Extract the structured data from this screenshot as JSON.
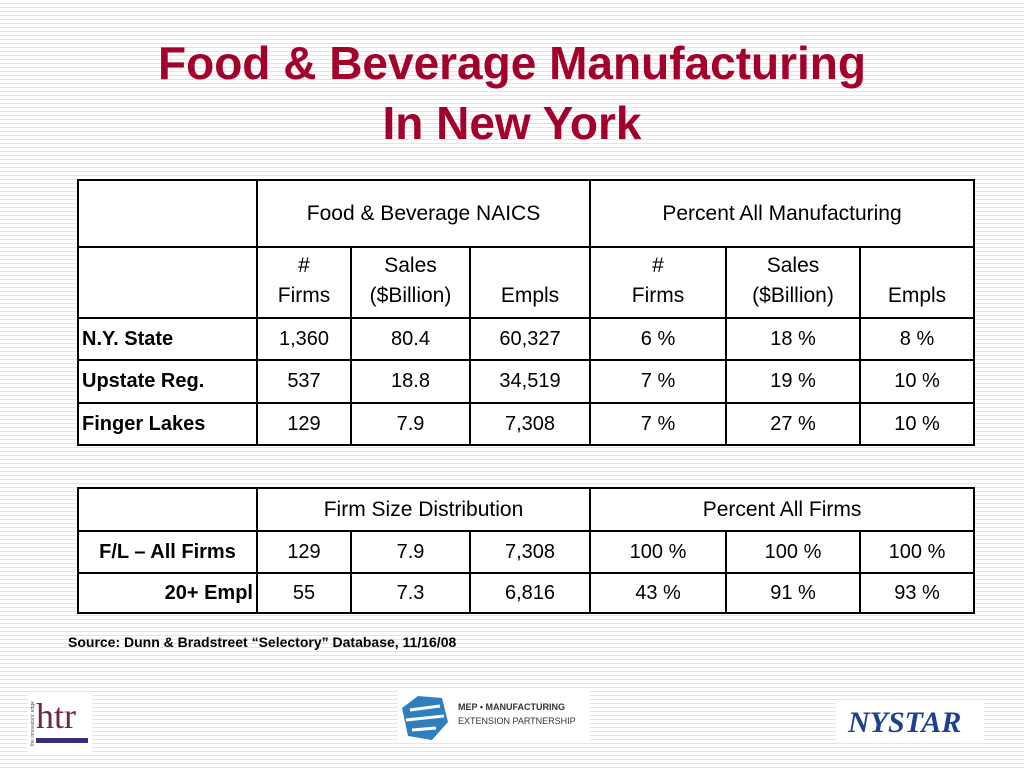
{
  "title": [
    "Food & Beverage Manufacturing",
    "In New York"
  ],
  "table1": {
    "group_headers": [
      "Food & Beverage NAICS",
      "Percent All Manufacturing"
    ],
    "col_headers": [
      [
        "#",
        "Firms"
      ],
      [
        "Sales",
        "($Billion)"
      ],
      [
        "Empls"
      ],
      [
        "#",
        "Firms"
      ],
      [
        "Sales",
        "($Billion)"
      ],
      [
        "Empls"
      ]
    ],
    "rows": [
      {
        "label": "N.Y. State",
        "cells": [
          "1,360",
          "80.4",
          "60,327",
          "6 %",
          "18 %",
          "8 %"
        ]
      },
      {
        "label": "Upstate Reg.",
        "cells": [
          "537",
          "18.8",
          "34,519",
          "7 %",
          "19 %",
          "10 %"
        ]
      },
      {
        "label": "Finger Lakes",
        "cells": [
          "129",
          "7.9",
          "7,308",
          "7 %",
          "27 %",
          "10 %"
        ]
      }
    ]
  },
  "table2": {
    "group_headers": [
      "Firm Size Distribution",
      "Percent All Firms"
    ],
    "rows": [
      {
        "label": "F/L – All Firms",
        "cells": [
          "129",
          "7.9",
          "7,308",
          "100 %",
          "100 %",
          "100 %"
        ]
      },
      {
        "label": "20+ Empl",
        "cells": [
          "55",
          "7.3",
          "6,816",
          "43 %",
          "91 %",
          "93 %"
        ]
      }
    ]
  },
  "source": "Source: Dunn & Bradstreet “Selectory” Database, 11/16/08",
  "logos": {
    "htr": "htr",
    "htr_tagline": "the innovators' edge",
    "mep": [
      "MEP • MANUFACTURING",
      "EXTENSION PARTNERSHIP"
    ],
    "nystar": "NYSTAR"
  }
}
